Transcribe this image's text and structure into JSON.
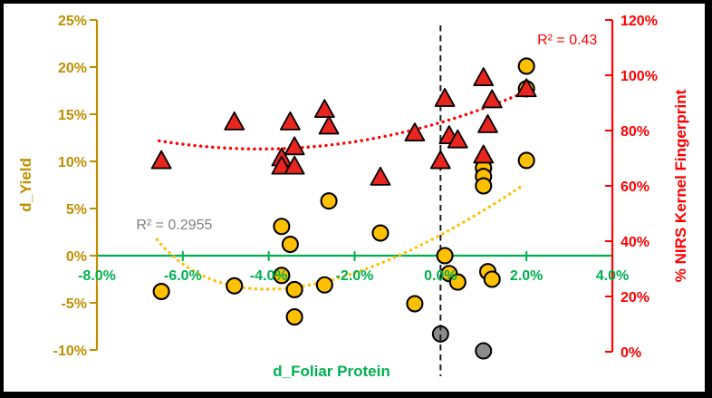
{
  "frame": {
    "border_color": "#000000",
    "background": "#FFFFFF"
  },
  "chart_data": {
    "type": "scatter",
    "x_axis": {
      "label": "d_Foliar Protein",
      "color": "#00B050",
      "range": [
        -8,
        4
      ],
      "ticks": [
        {
          "label": "-8.0%",
          "value": -8
        },
        {
          "label": "-6.0%",
          "value": -6
        },
        {
          "label": "-4.0%",
          "value": -4
        },
        {
          "label": "-2.0%",
          "value": -2
        },
        {
          "label": "0.0%",
          "value": 0
        },
        {
          "label": "2.0%",
          "value": 2
        },
        {
          "label": "4.0%",
          "value": 4
        }
      ]
    },
    "left_axis": {
      "label": "d_Yield",
      "color": "#BF8F00",
      "range": [
        -10,
        25
      ],
      "ticks": [
        {
          "label": "25%",
          "value": 25
        },
        {
          "label": "20%",
          "value": 20
        },
        {
          "label": "15%",
          "value": 15
        },
        {
          "label": "10%",
          "value": 10
        },
        {
          "label": "5%",
          "value": 5
        },
        {
          "label": "0%",
          "value": 0
        },
        {
          "label": "-5%",
          "value": -5
        },
        {
          "label": "-10%",
          "value": -10
        }
      ]
    },
    "right_axis": {
      "label": "% NIRS Kernel Fingerprint",
      "color": "#FF0000",
      "range": [
        0,
        120
      ],
      "ticks": [
        {
          "label": "120%",
          "value": 120
        },
        {
          "label": "100%",
          "value": 100
        },
        {
          "label": "80%",
          "value": 80
        },
        {
          "label": "60%",
          "value": 60
        },
        {
          "label": "40%",
          "value": 40
        },
        {
          "label": "20%",
          "value": 20
        },
        {
          "label": "0%",
          "value": 0
        }
      ]
    },
    "series": [
      {
        "name": "d_Yield",
        "marker": "circle",
        "axis": "left",
        "fill": "#FFC000",
        "stroke": "#000000",
        "points": [
          [
            -6.5,
            -3.8
          ],
          [
            -4.8,
            -3.2
          ],
          [
            -3.7,
            -2.1
          ],
          [
            -3.4,
            -3.6
          ],
          [
            -3.4,
            -6.5
          ],
          [
            -2.7,
            -3.1
          ],
          [
            -3.7,
            3.1
          ],
          [
            -3.5,
            1.2
          ],
          [
            -2.6,
            5.8
          ],
          [
            -1.4,
            2.4
          ],
          [
            -0.6,
            -5.1
          ],
          [
            0.1,
            0.0
          ],
          [
            0.2,
            -1.9
          ],
          [
            0.4,
            -2.8
          ],
          [
            1.1,
            -1.7
          ],
          [
            1.2,
            -2.5
          ],
          [
            1.0,
            9.3
          ],
          [
            1.0,
            8.4
          ],
          [
            1.0,
            7.4
          ],
          [
            2.0,
            20.1
          ],
          [
            2.0,
            17.7
          ],
          [
            2.0,
            10.1
          ]
        ]
      },
      {
        "name": "% NIRS Kernel Fingerprint",
        "marker": "triangle",
        "axis": "right",
        "fill": "#E8251F",
        "stroke": "#000000",
        "points": [
          [
            -6.5,
            69
          ],
          [
            -4.8,
            83
          ],
          [
            -3.5,
            83
          ],
          [
            -2.7,
            87.5
          ],
          [
            -2.6,
            81.5
          ],
          [
            -3.7,
            70
          ],
          [
            -3.7,
            67
          ],
          [
            -3.4,
            74
          ],
          [
            -3.4,
            67
          ],
          [
            -1.4,
            63
          ],
          [
            -0.6,
            79
          ],
          [
            0.0,
            69
          ],
          [
            0.1,
            91.5
          ],
          [
            0.2,
            78
          ],
          [
            0.4,
            76.5
          ],
          [
            1.0,
            99
          ],
          [
            1.0,
            71
          ],
          [
            1.1,
            82
          ],
          [
            1.2,
            91
          ],
          [
            2.0,
            95
          ]
        ]
      },
      {
        "name": "outliers",
        "marker": "circle",
        "axis": "left",
        "fill": "#8C8C8C",
        "stroke": "#000000",
        "points": [
          [
            0.0,
            -8.3
          ],
          [
            1.0,
            -10.1
          ]
        ]
      }
    ],
    "trendlines": [
      {
        "name": "yield-trend",
        "color": "#FFC000",
        "axis": "left",
        "shape": "quadratic",
        "start": [
          -6.6,
          1.7
        ],
        "mid": [
          -3.3,
          -3.3
        ],
        "end": [
          1.9,
          7.4
        ]
      },
      {
        "name": "nirs-trend",
        "color": "#FF0000",
        "axis": "right",
        "shape": "quadratic",
        "start": [
          -6.55,
          76.3
        ],
        "mid": [
          -2.25,
          75.4
        ],
        "end": [
          2.05,
          94.5
        ]
      }
    ],
    "annotations": [
      {
        "text": "R² = 0.2955",
        "color": "#7F7F7F",
        "x": -6.2,
        "y": 3.2,
        "y_axis": "left"
      },
      {
        "text": "R² = 0.43",
        "color": "#FF0000",
        "x": 2.95,
        "y": 112.5,
        "y_axis": "right"
      }
    ],
    "reference_lines": [
      {
        "orientation": "vertical",
        "x": 0,
        "color": "#1A1A1A",
        "style": "dashed"
      },
      {
        "orientation": "horizontal",
        "y": 0,
        "color": "#00B050",
        "style": "solid"
      }
    ]
  }
}
